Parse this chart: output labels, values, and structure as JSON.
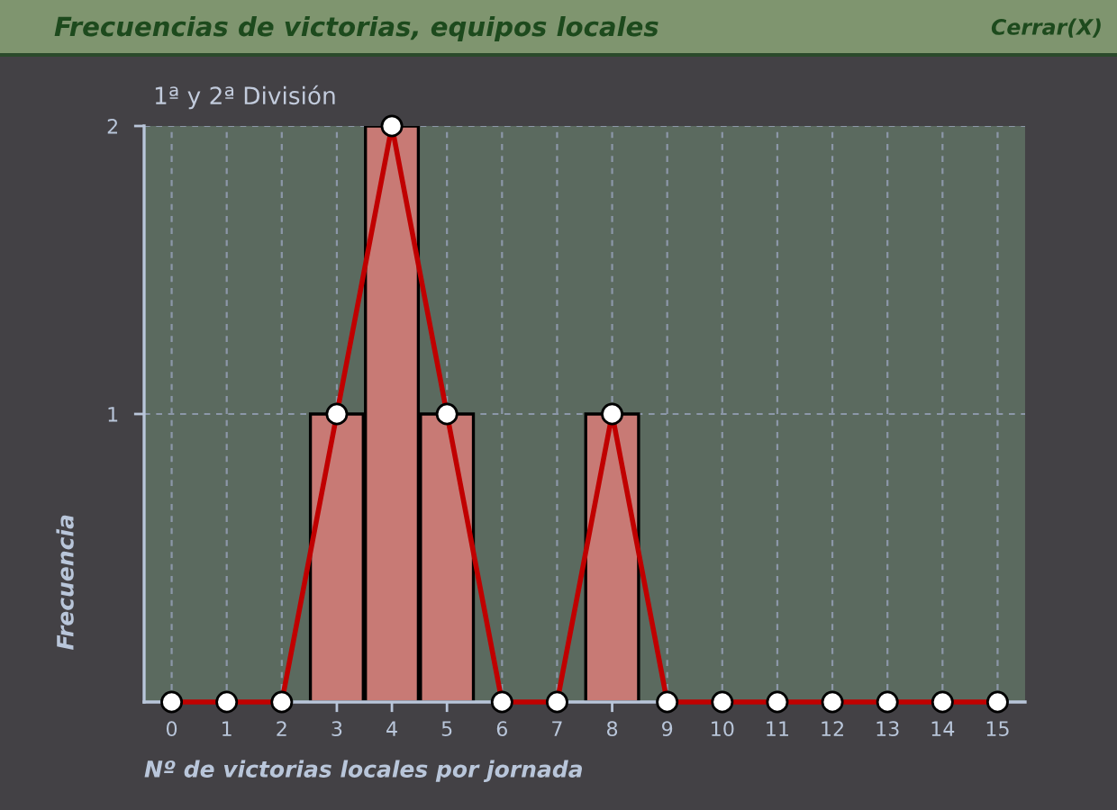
{
  "chart_data": {
    "type": "bar",
    "title": "Frecuencias de victorias, equipos locales",
    "subtitle": "1ª y 2ª División",
    "xlabel": "Nº de victorias locales por jornada",
    "ylabel": "Frecuencia",
    "annotations": [
      "Cerrar(X)"
    ],
    "categories": [
      "0",
      "1",
      "2",
      "3",
      "4",
      "5",
      "6",
      "7",
      "8",
      "9",
      "10",
      "11",
      "12",
      "13",
      "14",
      "15"
    ],
    "series": [
      {
        "color": "#c87a75",
        "values": [
          0,
          0,
          0,
          1,
          2,
          1,
          0,
          0,
          1,
          0,
          0,
          0,
          0,
          0,
          0,
          0
        ]
      },
      {
        "type": "line",
        "color": "#c00000",
        "values": [
          0,
          0,
          0,
          1,
          2,
          1,
          0,
          0,
          1,
          0,
          0,
          0,
          0,
          0,
          0,
          0
        ]
      }
    ],
    "ylim": [
      0,
      2
    ],
    "yticks": [
      1,
      2
    ],
    "grid": true,
    "marker": "circle",
    "line_style": "solid"
  }
}
